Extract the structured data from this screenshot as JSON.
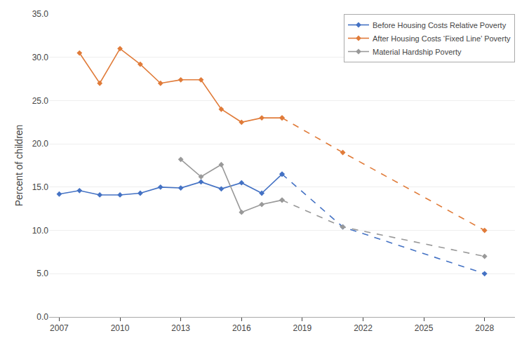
{
  "chart_data": {
    "type": "line",
    "y_label": "Percent of children",
    "series": [
      {
        "name": "Before Housing Costs Relative Poverty",
        "color": "#4472C4",
        "line_style": "solid",
        "marker": "diamond",
        "x": [
          2007,
          2008,
          2009,
          2010,
          2011,
          2012,
          2013,
          2014,
          2015,
          2016,
          2017,
          2018
        ],
        "values": [
          14.2,
          14.6,
          14.1,
          14.1,
          14.3,
          15.0,
          14.9,
          15.6,
          14.8,
          15.5,
          14.3,
          16.5
        ]
      },
      {
        "color": "#4472C4",
        "line_style": "dashed",
        "marker": "diamond",
        "x": [
          2018,
          2021,
          2028
        ],
        "values": [
          16.5,
          10.4,
          5.0
        ]
      },
      {
        "name": "After Housing Costs ‘Fixed Line’ Poverty",
        "color": "#E07B39",
        "line_style": "solid",
        "marker": "diamond",
        "x": [
          2008,
          2009,
          2010,
          2011,
          2012,
          2013,
          2014,
          2015,
          2016,
          2017,
          2018
        ],
        "values": [
          30.5,
          27.0,
          31.0,
          29.2,
          27.0,
          27.4,
          27.4,
          24.0,
          22.5,
          23.0,
          23.0
        ]
      },
      {
        "color": "#E07B39",
        "line_style": "dashed",
        "marker": "diamond",
        "x": [
          2018,
          2021,
          2028
        ],
        "values": [
          23.0,
          19.0,
          10.0
        ]
      },
      {
        "name": "Material Hardship Poverty",
        "color": "#999999",
        "line_style": "solid",
        "marker": "diamond",
        "x": [
          2013,
          2014,
          2015,
          2016,
          2017,
          2018
        ],
        "values": [
          18.2,
          16.2,
          17.6,
          12.1,
          13.0,
          13.5
        ]
      },
      {
        "color": "#999999",
        "line_style": "dashed",
        "marker": "diamond",
        "x": [
          2018,
          2021,
          2028
        ],
        "values": [
          13.5,
          10.4,
          7.0
        ]
      }
    ],
    "xlim": [
      2006.5,
      2029.5
    ],
    "xticks": [
      2007,
      2010,
      2013,
      2016,
      2019,
      2022,
      2025,
      2028
    ],
    "ylim": [
      0,
      35
    ],
    "yticks": [
      {
        "value": 0,
        "label": "0.0"
      },
      {
        "value": 5,
        "label": "5.0"
      },
      {
        "value": 10,
        "label": "10.0"
      },
      {
        "value": 15,
        "label": "15.0"
      },
      {
        "value": 20,
        "label": "20.0"
      },
      {
        "value": 25,
        "label": "25.0"
      },
      {
        "value": 30,
        "label": "30.0"
      },
      {
        "value": 35,
        "label": "35.0"
      }
    ],
    "grid": "y",
    "legend": "upper right"
  }
}
